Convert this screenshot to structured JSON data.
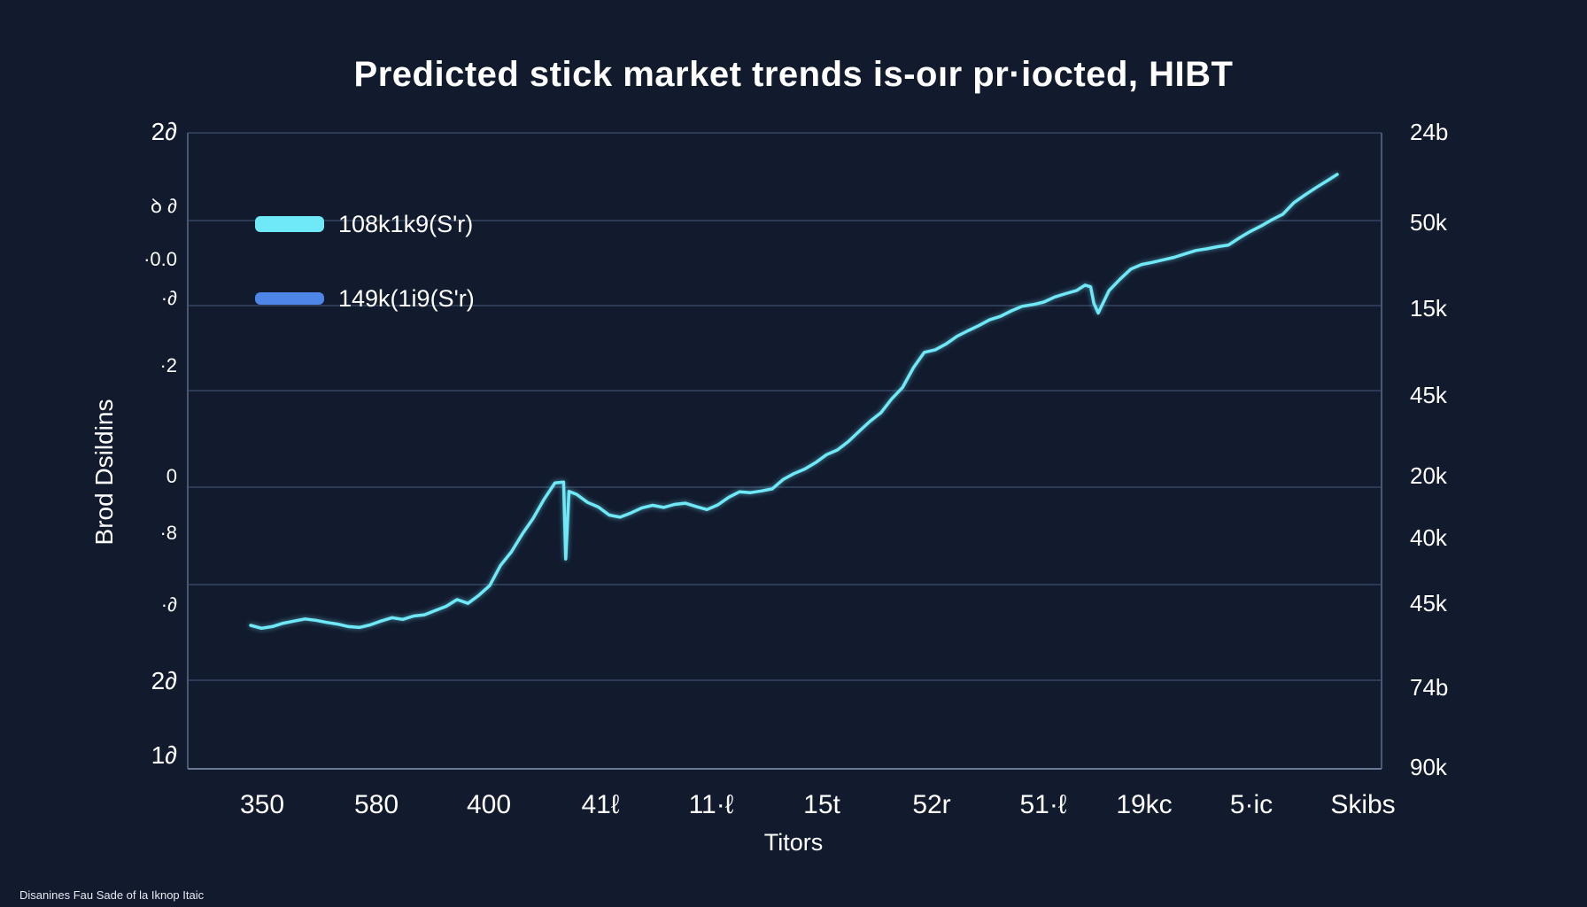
{
  "chart_data": {
    "type": "line",
    "title": "Predicted stick market trends is-oır pr·iocted, HIBT",
    "xlabel": "Titors",
    "ylabel": "Brod Dsildins",
    "footnote": "Disanines Fau Sade of la Iknop Itaic",
    "grid": true,
    "legend_position": "top-left",
    "legend": [
      {
        "label": "108k1k9(S'r)",
        "color": "#6fe9f7"
      },
      {
        "label": "149k(1i9(S'r)",
        "color": "#4e86e8"
      }
    ],
    "x_tick_labels": [
      "350",
      "580",
      "400",
      "41ℓ",
      "11·ℓ",
      "15t",
      "52r",
      "51·ℓ",
      "19kc",
      "5·ic",
      "Skibs"
    ],
    "y_left_tick_labels": [
      "2∂",
      "ꝺ ∂",
      "·0.0",
      "·∂",
      "·2",
      "0",
      "·8",
      "·∂",
      "2∂",
      "1∂"
    ],
    "y_right_tick_labels": [
      "24b",
      "50k",
      "15k",
      "45k",
      "20k",
      "40k",
      "45k",
      "74b",
      "90k"
    ],
    "xlim": [
      0,
      100
    ],
    "ylim": [
      0,
      100
    ],
    "series": [
      {
        "color": "#6fe9f7",
        "x": [
          0,
          1,
          2,
          3,
          4,
          5,
          6,
          7,
          8,
          9,
          10,
          11,
          12,
          13,
          14,
          15,
          16,
          17,
          18,
          19,
          20,
          21,
          22,
          23,
          24,
          25,
          26,
          27,
          28,
          28.8,
          29,
          29.3,
          30,
          31,
          32,
          33,
          34,
          35,
          36,
          37,
          38,
          39,
          40,
          41,
          42,
          43,
          44,
          45,
          46,
          47,
          48,
          49,
          50,
          51,
          52,
          53,
          54,
          55,
          56,
          57,
          58,
          59,
          60,
          61,
          62,
          63,
          64,
          65,
          66,
          67,
          68,
          69,
          70,
          71,
          72,
          73,
          74,
          75,
          76,
          76.8,
          77.3,
          77.6,
          78,
          79,
          80,
          81,
          82,
          83,
          84,
          85,
          86,
          87,
          88,
          89,
          90,
          91,
          92,
          93,
          94,
          95,
          96,
          97,
          98,
          99,
          100
        ],
        "y": [
          10.9,
          10.2,
          10.6,
          11.4,
          11.9,
          12.4,
          12.1,
          11.6,
          11.2,
          10.6,
          10.4,
          11.0,
          11.9,
          12.7,
          12.3,
          13.1,
          13.4,
          14.4,
          15.4,
          17.0,
          16.1,
          18.0,
          20.3,
          25.1,
          28.3,
          32.5,
          36.2,
          40.7,
          44.6,
          44.8,
          26.6,
          42.6,
          41.9,
          40.0,
          38.9,
          37.0,
          36.5,
          37.5,
          38.7,
          39.3,
          38.8,
          39.5,
          39.8,
          39.0,
          38.3,
          39.4,
          41.2,
          42.5,
          42.3,
          42.7,
          43.2,
          45.4,
          46.8,
          47.9,
          49.4,
          51.3,
          52.4,
          54.4,
          56.8,
          59.2,
          61.2,
          64.5,
          67.2,
          71.9,
          75.5,
          76.1,
          77.5,
          79.3,
          80.6,
          81.8,
          83.2,
          84.0,
          85.3,
          86.4,
          86.8,
          87.4,
          88.6,
          89.4,
          90.1,
          91.4,
          91.0,
          87.1,
          84.8,
          90.1,
          92.8,
          95.2,
          96.3,
          96.8,
          97.4,
          98.0,
          98.8,
          99.6,
          100.0,
          100.5,
          100.9,
          102.6,
          104.1,
          105.4,
          106.9,
          108.2,
          110.9,
          112.7,
          114.4,
          116.0,
          117.6
        ]
      }
    ]
  }
}
